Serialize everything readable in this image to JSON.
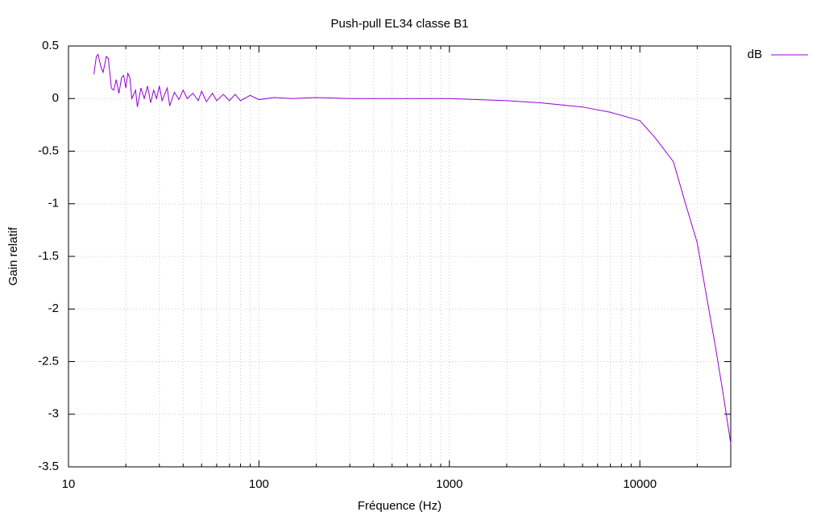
{
  "chart_data": {
    "type": "line",
    "title": "Push-pull EL34 classe B1",
    "x_label": "Fréquence (Hz)",
    "y_label": "Gain relatif",
    "log_x": true,
    "grid": true,
    "legend_position": "top-right",
    "xlim": [
      10,
      30000
    ],
    "xticks": [
      10,
      100,
      1000,
      10000
    ],
    "xminorticks": [
      20,
      30,
      40,
      50,
      60,
      70,
      80,
      90,
      200,
      300,
      400,
      500,
      600,
      700,
      800,
      900,
      2000,
      3000,
      4000,
      5000,
      6000,
      7000,
      8000,
      9000,
      20000
    ],
    "ylim": [
      -3.5,
      0.5
    ],
    "yticks": [
      -3.5,
      -3,
      -2.5,
      -2,
      -1.5,
      -1,
      -0.5,
      0,
      0.5
    ],
    "x": [
      13.6,
      14,
      14.3,
      14.8,
      15.2,
      15.8,
      16.2,
      16.8,
      17.3,
      17.8,
      18.4,
      19,
      19.5,
      20,
      20.5,
      21,
      21.5,
      22.5,
      23,
      24,
      25,
      26,
      27,
      28,
      29,
      30,
      31,
      33,
      34,
      36,
      38,
      40,
      42,
      45,
      48,
      50,
      53,
      57,
      60,
      65,
      70,
      75,
      80,
      90,
      100,
      120,
      150,
      200,
      300,
      500,
      1000,
      2000,
      3000,
      5000,
      7000,
      10000,
      12000,
      15000,
      17500,
      20000,
      22000,
      25000,
      27500,
      30000
    ],
    "series": [
      {
        "name": "dB",
        "color": "#9400d3",
        "values": [
          0.23,
          0.4,
          0.42,
          0.3,
          0.25,
          0.4,
          0.38,
          0.1,
          0.08,
          0.18,
          0.05,
          0.2,
          0.22,
          0.1,
          0.24,
          0.2,
          0.0,
          0.08,
          -0.08,
          0.1,
          0.0,
          0.12,
          -0.04,
          0.08,
          0.0,
          0.12,
          -0.02,
          0.1,
          -0.07,
          0.06,
          -0.01,
          0.08,
          0.0,
          0.05,
          -0.02,
          0.07,
          -0.03,
          0.05,
          -0.02,
          0.04,
          -0.02,
          0.04,
          -0.02,
          0.03,
          -0.01,
          0.01,
          0.0,
          0.01,
          0.0,
          0.0,
          0,
          -0.02,
          -0.04,
          -0.08,
          -0.13,
          -0.21,
          -0.37,
          -0.6,
          -1.02,
          -1.37,
          -1.8,
          -2.37,
          -2.83,
          -3.28
        ]
      }
    ]
  }
}
